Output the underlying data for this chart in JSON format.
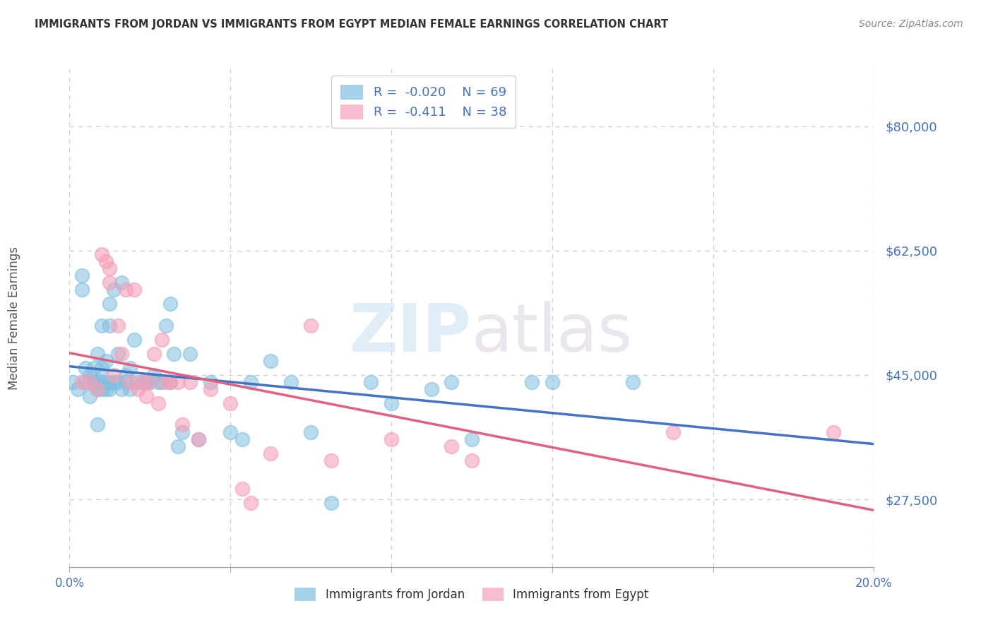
{
  "title": "IMMIGRANTS FROM JORDAN VS IMMIGRANTS FROM EGYPT MEDIAN FEMALE EARNINGS CORRELATION CHART",
  "source": "Source: ZipAtlas.com",
  "ylabel": "Median Female Earnings",
  "xlim": [
    0.0,
    0.2
  ],
  "ylim": [
    18000,
    88000
  ],
  "yticks": [
    27500,
    45000,
    62500,
    80000
  ],
  "xticks": [
    0.0,
    0.04,
    0.08,
    0.12,
    0.16,
    0.2
  ],
  "ytick_labels": [
    "$27,500",
    "$45,000",
    "$62,500",
    "$80,000"
  ],
  "jordan_color": "#7fbfdf",
  "egypt_color": "#f4a0b8",
  "jordan_R": -0.02,
  "jordan_N": 69,
  "egypt_R": -0.411,
  "egypt_N": 38,
  "background_color": "#ffffff",
  "grid_color": "#cccccc",
  "tick_color": "#4472c4",
  "jordan_scatter_x": [
    0.001,
    0.002,
    0.003,
    0.003,
    0.004,
    0.004,
    0.005,
    0.005,
    0.005,
    0.006,
    0.006,
    0.006,
    0.007,
    0.007,
    0.007,
    0.007,
    0.008,
    0.008,
    0.008,
    0.008,
    0.009,
    0.009,
    0.009,
    0.01,
    0.01,
    0.01,
    0.01,
    0.011,
    0.011,
    0.012,
    0.012,
    0.013,
    0.013,
    0.014,
    0.014,
    0.015,
    0.015,
    0.016,
    0.017,
    0.018,
    0.019,
    0.02,
    0.021,
    0.022,
    0.023,
    0.024,
    0.025,
    0.025,
    0.026,
    0.027,
    0.028,
    0.03,
    0.032,
    0.035,
    0.04,
    0.043,
    0.045,
    0.05,
    0.055,
    0.06,
    0.065,
    0.075,
    0.08,
    0.09,
    0.095,
    0.1,
    0.115,
    0.12,
    0.14
  ],
  "jordan_scatter_y": [
    44000,
    43000,
    57000,
    59000,
    46000,
    44000,
    44000,
    42000,
    45000,
    44000,
    46000,
    44000,
    38000,
    43000,
    44000,
    48000,
    43000,
    44000,
    46000,
    52000,
    43000,
    44000,
    47000,
    52000,
    55000,
    44000,
    43000,
    57000,
    44000,
    44000,
    48000,
    58000,
    43000,
    44000,
    45000,
    43000,
    46000,
    50000,
    44000,
    44000,
    44000,
    44000,
    45000,
    44000,
    44000,
    52000,
    55000,
    44000,
    48000,
    35000,
    37000,
    48000,
    36000,
    44000,
    37000,
    36000,
    44000,
    47000,
    44000,
    37000,
    27000,
    44000,
    41000,
    43000,
    44000,
    36000,
    44000,
    44000,
    44000
  ],
  "egypt_scatter_x": [
    0.003,
    0.005,
    0.007,
    0.008,
    0.009,
    0.01,
    0.01,
    0.011,
    0.012,
    0.013,
    0.014,
    0.015,
    0.016,
    0.017,
    0.018,
    0.019,
    0.02,
    0.021,
    0.022,
    0.023,
    0.024,
    0.025,
    0.027,
    0.028,
    0.03,
    0.032,
    0.035,
    0.04,
    0.043,
    0.045,
    0.05,
    0.06,
    0.065,
    0.08,
    0.095,
    0.1,
    0.15,
    0.19
  ],
  "egypt_scatter_y": [
    44000,
    44000,
    43000,
    62000,
    61000,
    58000,
    60000,
    45000,
    52000,
    48000,
    57000,
    44000,
    57000,
    43000,
    44000,
    42000,
    44000,
    48000,
    41000,
    50000,
    44000,
    44000,
    44000,
    38000,
    44000,
    36000,
    43000,
    41000,
    29000,
    27000,
    34000,
    52000,
    33000,
    36000,
    35000,
    33000,
    37000,
    37000
  ]
}
